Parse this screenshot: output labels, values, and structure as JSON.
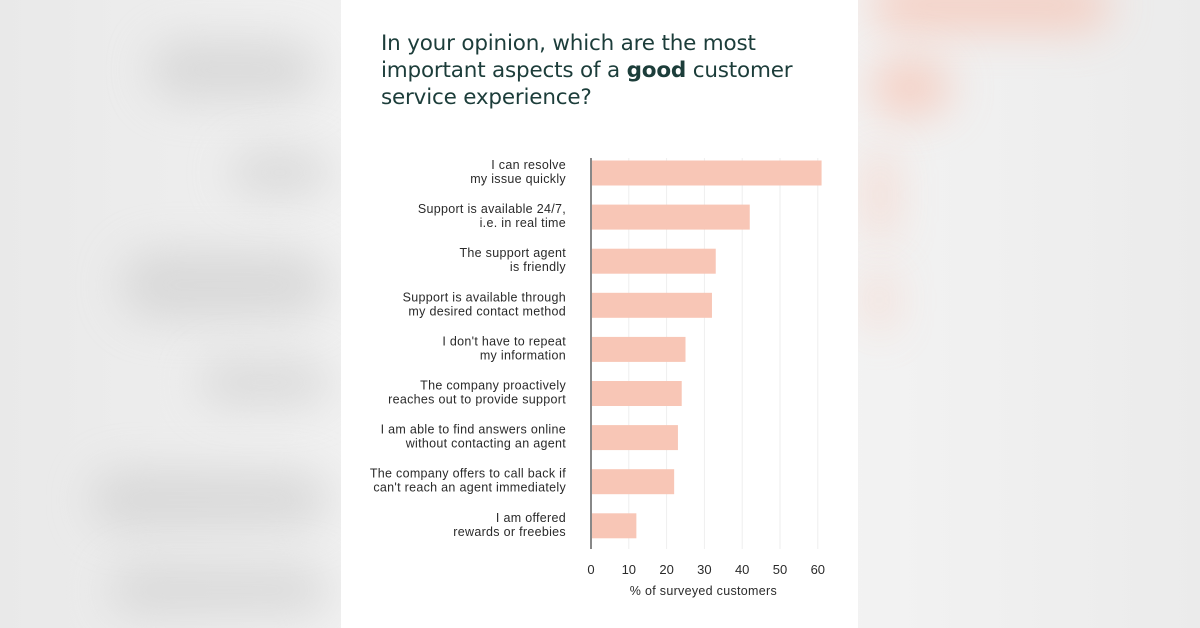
{
  "title": {
    "before": "In your opinion, which are the most important aspects of a ",
    "emphasis": "good",
    "after": " customer service experience?"
  },
  "chart_data": {
    "type": "bar",
    "orientation": "horizontal",
    "title": "In your opinion, which are the most important aspects of a good customer service experience?",
    "xlabel": "% of surveyed customers",
    "ylabel": "",
    "xlim": [
      0,
      60
    ],
    "xticks": [
      0,
      10,
      20,
      30,
      40,
      50,
      60
    ],
    "grid": true,
    "bar_color": "#f8c6b6",
    "categories": [
      [
        "I can resolve",
        "my issue quickly"
      ],
      [
        "Support is available 24/7,",
        "i.e. in real time"
      ],
      [
        "The support agent",
        "is friendly"
      ],
      [
        "Support is available through",
        "my desired contact method"
      ],
      [
        "I don't have to repeat",
        "my information"
      ],
      [
        "The company proactively",
        "reaches out to provide support"
      ],
      [
        "I am able to find answers online",
        "without contacting an agent"
      ],
      [
        "The company offers to call back if",
        "can't reach an agent immediately"
      ],
      [
        "I am offered",
        "rewards or freebies"
      ]
    ],
    "values": [
      61,
      42,
      33,
      32,
      25,
      24,
      23,
      22,
      12
    ]
  }
}
